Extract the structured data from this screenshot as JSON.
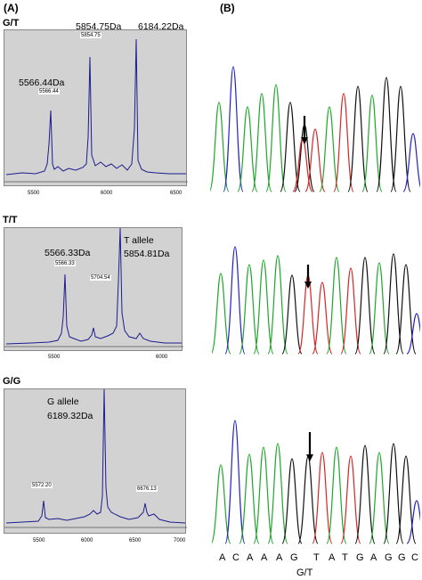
{
  "panel_labels": {
    "a": "(A)",
    "b": "(B)"
  },
  "rows": [
    {
      "genotype": "G/T",
      "annotations": [
        "5854.75Da",
        "6184.22Da",
        "5566.44Da"
      ],
      "peak_labels": [
        "5854.75",
        "5566.44"
      ],
      "ticks": [
        "5500",
        "6000",
        "6500"
      ]
    },
    {
      "genotype": "T/T",
      "annotations": [
        "5566.33Da",
        "T allele",
        "5854.81Da"
      ],
      "peak_labels": [
        "5566.33",
        "5704.54"
      ],
      "ticks": [
        "5500",
        "6000"
      ]
    },
    {
      "genotype": "G/G",
      "annotations": [
        "G allele",
        "6189.32Da"
      ],
      "peak_labels": [
        "5572.20",
        "6676.13"
      ],
      "ticks": [
        "5500",
        "6000",
        "6500",
        "7000"
      ]
    }
  ],
  "sequence": [
    "A",
    "C",
    "A",
    "A",
    "A",
    "G",
    "T",
    "A",
    "T",
    "G",
    "A",
    "G",
    "G",
    "C"
  ],
  "snp_label": "G/T",
  "colors": {
    "spectrum_bg": "#d2d2d2",
    "spectrum_line": "#1c1c8e",
    "A": "#1fa72a",
    "C": "#2323c8",
    "G": "#111111",
    "T": "#d62626"
  }
}
